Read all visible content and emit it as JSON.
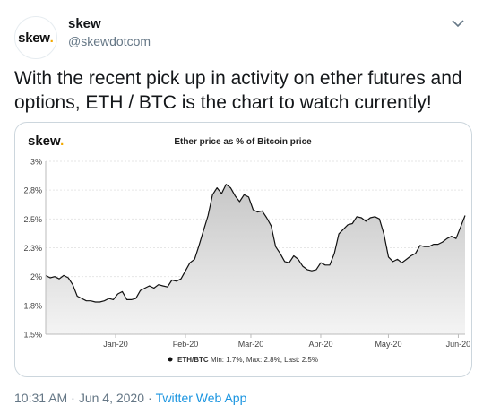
{
  "user": {
    "avatar_text": "skew",
    "avatar_dot": ".",
    "name": "skew",
    "handle": "@skewdotcom"
  },
  "tweet": {
    "text": "With the recent pick up in activity on ether futures and options, ETH / BTC is the chart to watch currently!"
  },
  "footer": {
    "time": "10:31 AM",
    "date": "Jun 4, 2020",
    "separator": "·",
    "source": "Twitter Web App"
  },
  "colors": {
    "accent_link": "#1b95e0",
    "brand_dot": "#f2a900",
    "series_line": "#111111"
  },
  "chart_data": {
    "type": "area",
    "brand": "skew",
    "brand_dot": ".",
    "title": "Ether price as % of Bitcoin price",
    "yticks": [
      1.5,
      1.75,
      2,
      2.25,
      2.5,
      2.75,
      3
    ],
    "ytick_labels": [
      "1.5%",
      "1.8%",
      "2%",
      "2.3%",
      "2.5%",
      "2.8%",
      "3%"
    ],
    "ylim": [
      1.5,
      3
    ],
    "x_start": "2019-12-01",
    "x_end": "2020-06-04",
    "xticks": [
      {
        "date": "2020-01-01",
        "label": "Jan-20"
      },
      {
        "date": "2020-02-01",
        "label": "Feb-20"
      },
      {
        "date": "2020-03-01",
        "label": "Mar-20"
      },
      {
        "date": "2020-04-01",
        "label": "Apr-20"
      },
      {
        "date": "2020-05-01",
        "label": "May-20"
      },
      {
        "date": "2020-06-01",
        "label": "Jun-20"
      }
    ],
    "legend": {
      "series_name": "ETH/BTC",
      "stats": "Min: 1.7%, Max: 2.8%, Last: 2.5%",
      "placement": "bottom"
    },
    "grid": true,
    "series": [
      {
        "name": "ETH/BTC",
        "x": [
          "2019-12-01",
          "2019-12-03",
          "2019-12-05",
          "2019-12-07",
          "2019-12-09",
          "2019-12-11",
          "2019-12-13",
          "2019-12-15",
          "2019-12-17",
          "2019-12-19",
          "2019-12-21",
          "2019-12-23",
          "2019-12-25",
          "2019-12-27",
          "2019-12-29",
          "2019-12-31",
          "2020-01-02",
          "2020-01-04",
          "2020-01-06",
          "2020-01-08",
          "2020-01-10",
          "2020-01-12",
          "2020-01-14",
          "2020-01-16",
          "2020-01-18",
          "2020-01-20",
          "2020-01-22",
          "2020-01-24",
          "2020-01-26",
          "2020-01-28",
          "2020-01-30",
          "2020-02-01",
          "2020-02-03",
          "2020-02-05",
          "2020-02-07",
          "2020-02-09",
          "2020-02-11",
          "2020-02-13",
          "2020-02-15",
          "2020-02-17",
          "2020-02-19",
          "2020-02-21",
          "2020-02-23",
          "2020-02-25",
          "2020-02-27",
          "2020-02-29",
          "2020-03-02",
          "2020-03-04",
          "2020-03-06",
          "2020-03-08",
          "2020-03-10",
          "2020-03-12",
          "2020-03-14",
          "2020-03-16",
          "2020-03-18",
          "2020-03-20",
          "2020-03-22",
          "2020-03-24",
          "2020-03-26",
          "2020-03-28",
          "2020-03-30",
          "2020-04-01",
          "2020-04-03",
          "2020-04-05",
          "2020-04-07",
          "2020-04-09",
          "2020-04-11",
          "2020-04-13",
          "2020-04-15",
          "2020-04-17",
          "2020-04-19",
          "2020-04-21",
          "2020-04-23",
          "2020-04-25",
          "2020-04-27",
          "2020-04-29",
          "2020-05-01",
          "2020-05-03",
          "2020-05-05",
          "2020-05-07",
          "2020-05-09",
          "2020-05-11",
          "2020-05-13",
          "2020-05-15",
          "2020-05-17",
          "2020-05-19",
          "2020-05-21",
          "2020-05-23",
          "2020-05-25",
          "2020-05-27",
          "2020-05-29",
          "2020-05-31",
          "2020-06-02",
          "2020-06-04"
        ],
        "values": [
          2.01,
          1.99,
          2.0,
          1.98,
          2.01,
          1.99,
          1.93,
          1.83,
          1.81,
          1.79,
          1.79,
          1.78,
          1.78,
          1.79,
          1.81,
          1.8,
          1.85,
          1.87,
          1.8,
          1.8,
          1.81,
          1.88,
          1.9,
          1.92,
          1.9,
          1.93,
          1.92,
          1.91,
          1.97,
          1.96,
          1.98,
          2.05,
          2.12,
          2.15,
          2.27,
          2.4,
          2.53,
          2.71,
          2.77,
          2.72,
          2.8,
          2.77,
          2.7,
          2.65,
          2.71,
          2.69,
          2.58,
          2.56,
          2.57,
          2.51,
          2.44,
          2.26,
          2.2,
          2.13,
          2.12,
          2.18,
          2.15,
          2.09,
          2.06,
          2.05,
          2.06,
          2.12,
          2.1,
          2.1,
          2.2,
          2.37,
          2.41,
          2.45,
          2.46,
          2.52,
          2.51,
          2.48,
          2.51,
          2.52,
          2.5,
          2.37,
          2.17,
          2.13,
          2.15,
          2.12,
          2.15,
          2.18,
          2.2,
          2.27,
          2.26,
          2.26,
          2.28,
          2.28,
          2.3,
          2.33,
          2.35,
          2.33,
          2.43,
          2.53
        ]
      }
    ]
  }
}
